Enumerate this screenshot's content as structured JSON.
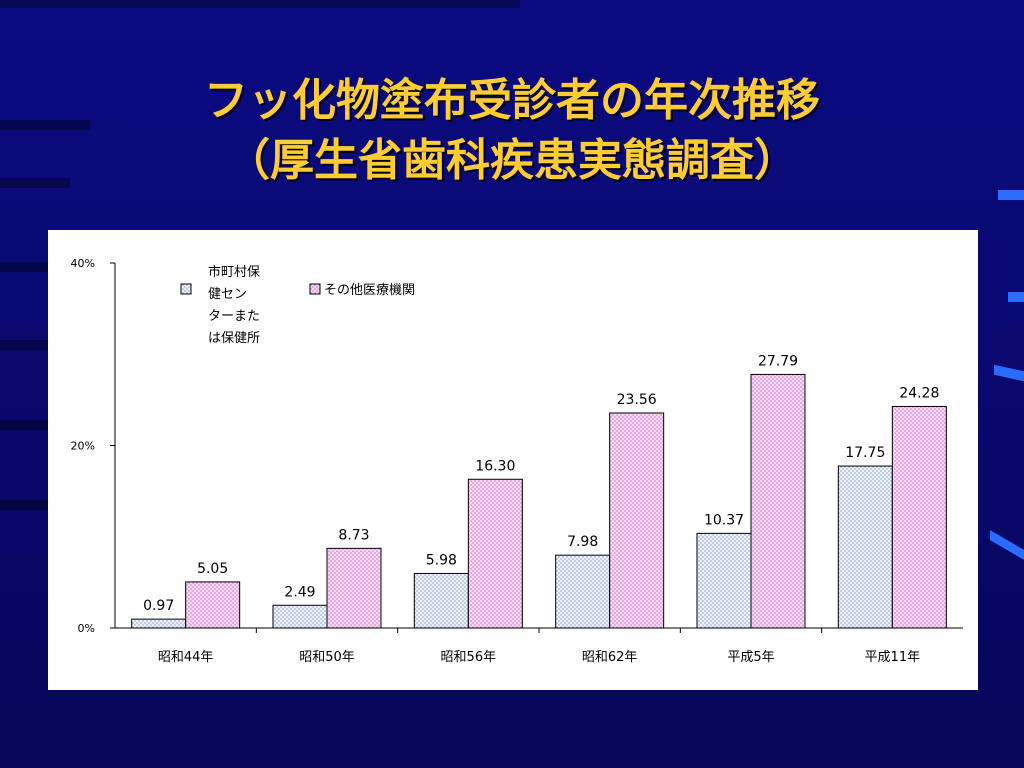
{
  "slide": {
    "title_line1": "フッ化物塗布受診者の年次推移",
    "title_line2": "（厚生省歯科疾患実態調査）"
  },
  "colors": {
    "background": "#0a0a7a",
    "title": "#ffcc33",
    "series1_fill": "#dde4f6",
    "series2_fill": "#f0c8f0"
  },
  "chart_data": {
    "type": "bar",
    "title": "",
    "xlabel": "",
    "ylabel": "",
    "ylim": [
      0,
      40
    ],
    "y_ticks": [
      "0%",
      "20%",
      "40%"
    ],
    "categories": [
      "昭和44年",
      "昭和50年",
      "昭和56年",
      "昭和62年",
      "平成5年",
      "平成11年"
    ],
    "series": [
      {
        "name": "市町村保健センターまたは保健所",
        "legend_lines": [
          "市町村保",
          "健セン",
          "ターまた",
          "は保健所"
        ],
        "values": [
          0.97,
          2.49,
          5.98,
          7.98,
          10.37,
          17.75
        ],
        "labels": [
          "0.97",
          "2.49",
          "5.98",
          "7.98",
          "10.37",
          "17.75"
        ]
      },
      {
        "name": "その他医療機関",
        "legend_lines": [
          "その他医療機関"
        ],
        "values": [
          5.05,
          8.73,
          16.3,
          23.56,
          27.79,
          24.28
        ],
        "labels": [
          "5.05",
          "8.73",
          "16.30",
          "23.56",
          "27.79",
          "24.28"
        ]
      }
    ],
    "legend_position": "top-left",
    "grid": false
  }
}
